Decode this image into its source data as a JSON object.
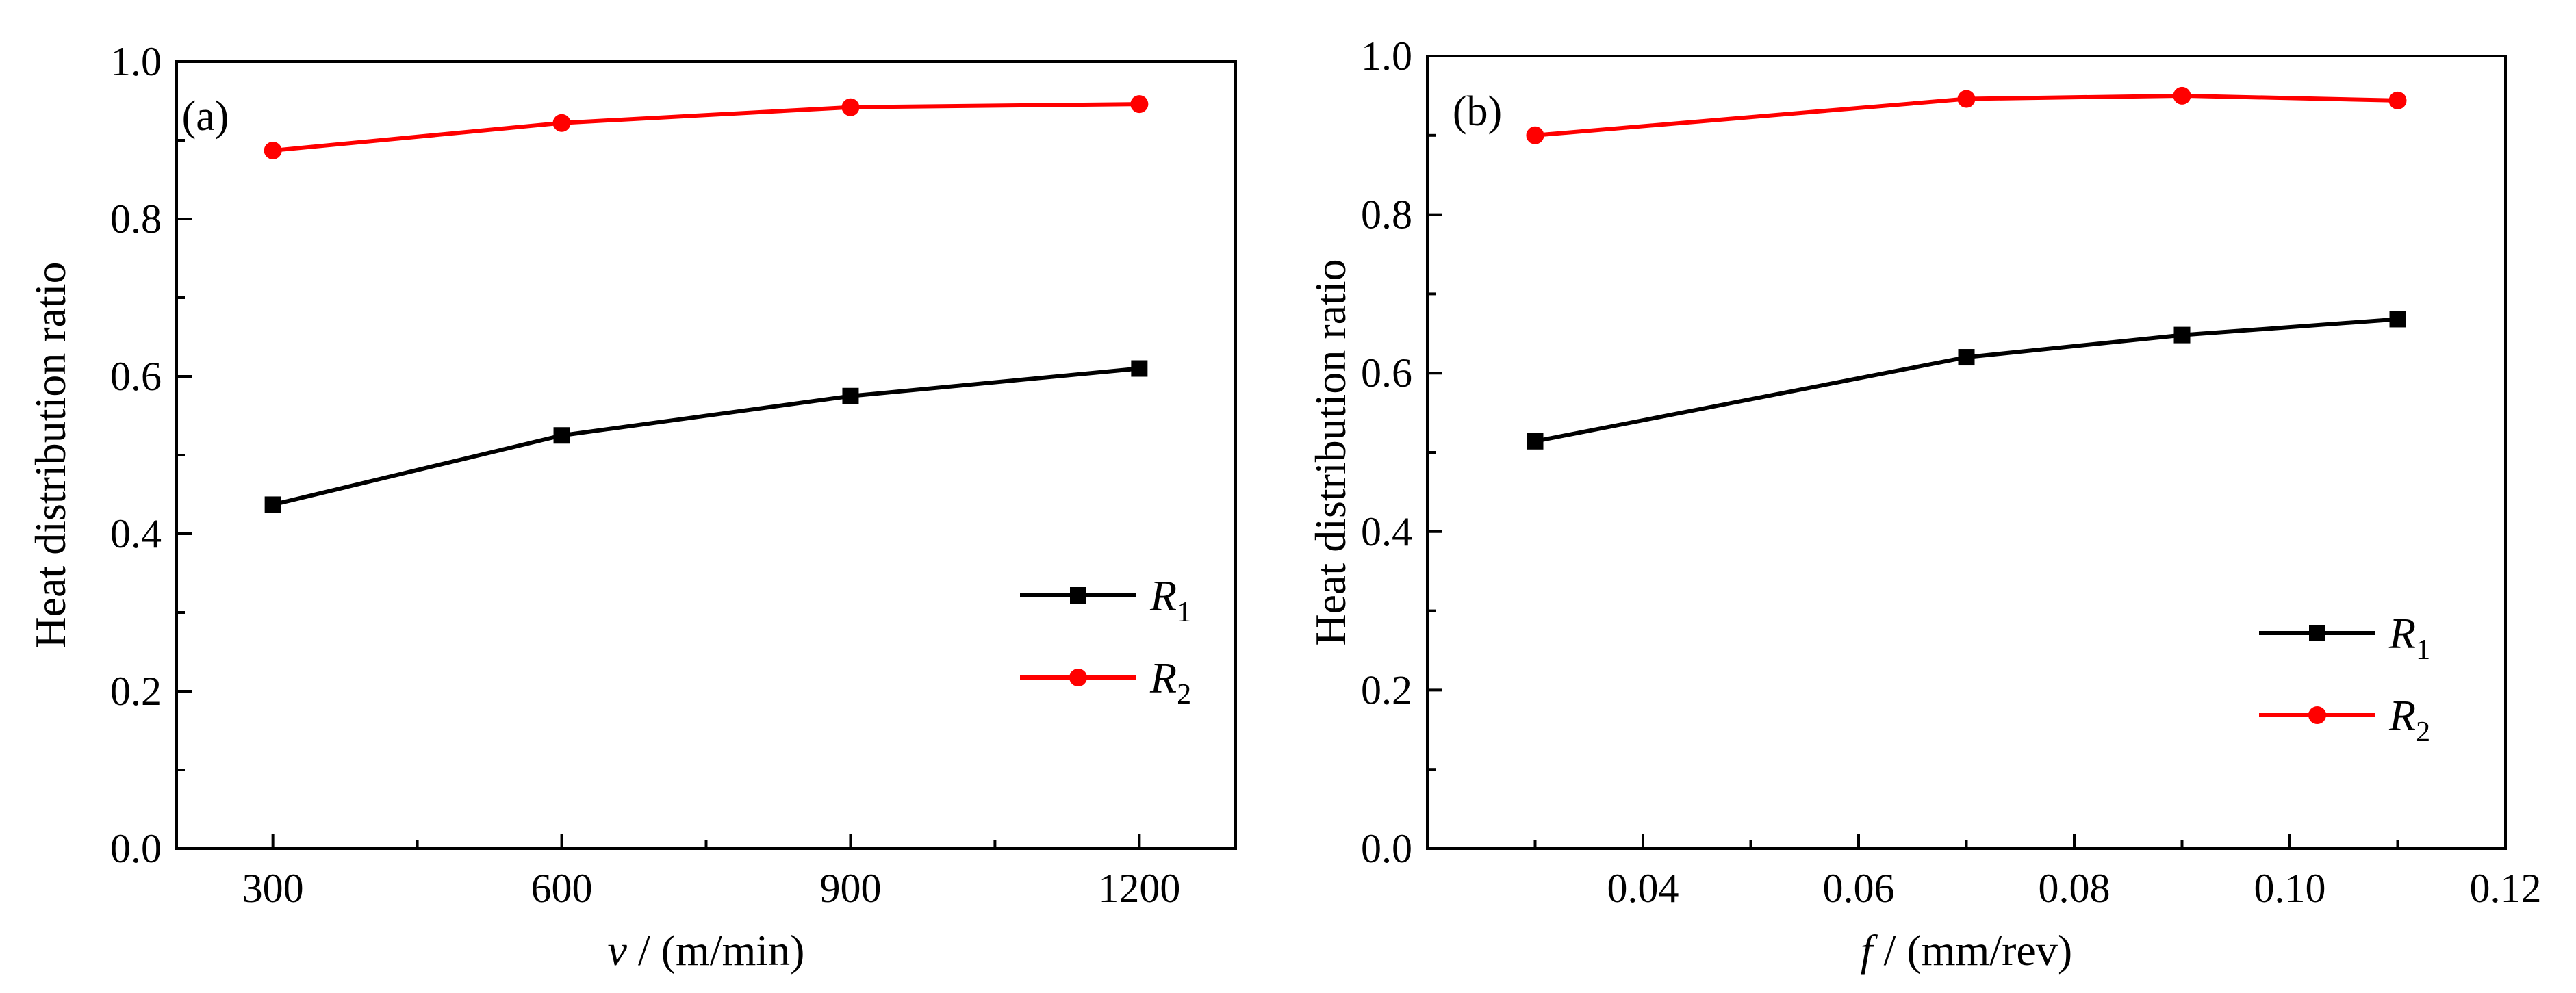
{
  "figure": {
    "panels": [
      "(a)",
      "(b)"
    ]
  },
  "chart_data": [
    {
      "type": "line",
      "label": "(a)",
      "xlabel_var": "v",
      "xlabel_unit": " / (m/min)",
      "ylabel": "Heat distribution ratio",
      "xlim": [
        200,
        1300
      ],
      "ylim": [
        0.0,
        1.0
      ],
      "xticks": [
        300,
        600,
        900,
        1200
      ],
      "xtick_labels": [
        "300",
        "600",
        "900",
        "1200"
      ],
      "yticks": [
        0.0,
        0.2,
        0.4,
        0.6,
        0.8,
        1.0
      ],
      "ytick_labels": [
        "0.0",
        "0.2",
        "0.4",
        "0.6",
        "0.8",
        "1.0"
      ],
      "legend_position": "lower-right",
      "x": [
        300,
        600,
        900,
        1200
      ],
      "series": [
        {
          "name": "R",
          "subscript": "1",
          "color": "#000000",
          "marker": "square",
          "values": [
            0.437,
            0.525,
            0.575,
            0.61
          ]
        },
        {
          "name": "R",
          "subscript": "2",
          "color": "#ff0000",
          "marker": "circle",
          "values": [
            0.887,
            0.922,
            0.942,
            0.946
          ]
        }
      ]
    },
    {
      "type": "line",
      "label": "(b)",
      "xlabel_var": "f",
      "xlabel_unit": " / (mm/rev)",
      "ylabel": "Heat distribution ratio",
      "xlim": [
        0.02,
        0.12
      ],
      "ylim": [
        0.0,
        1.0
      ],
      "xticks": [
        0.04,
        0.06,
        0.08,
        0.1,
        0.12
      ],
      "xtick_labels": [
        "0.04",
        "0.06",
        "0.08",
        "0.10",
        "0.12"
      ],
      "yticks": [
        0.0,
        0.2,
        0.4,
        0.6,
        0.8,
        1.0
      ],
      "ytick_labels": [
        "0.0",
        "0.2",
        "0.4",
        "0.6",
        "0.8",
        "1.0"
      ],
      "legend_position": "lower-right",
      "x": [
        0.03,
        0.07,
        0.09,
        0.11
      ],
      "series": [
        {
          "name": "R",
          "subscript": "1",
          "color": "#000000",
          "marker": "square",
          "values": [
            0.514,
            0.62,
            0.648,
            0.668
          ]
        },
        {
          "name": "R",
          "subscript": "2",
          "color": "#ff0000",
          "marker": "circle",
          "values": [
            0.9,
            0.946,
            0.95,
            0.944
          ]
        }
      ]
    }
  ]
}
